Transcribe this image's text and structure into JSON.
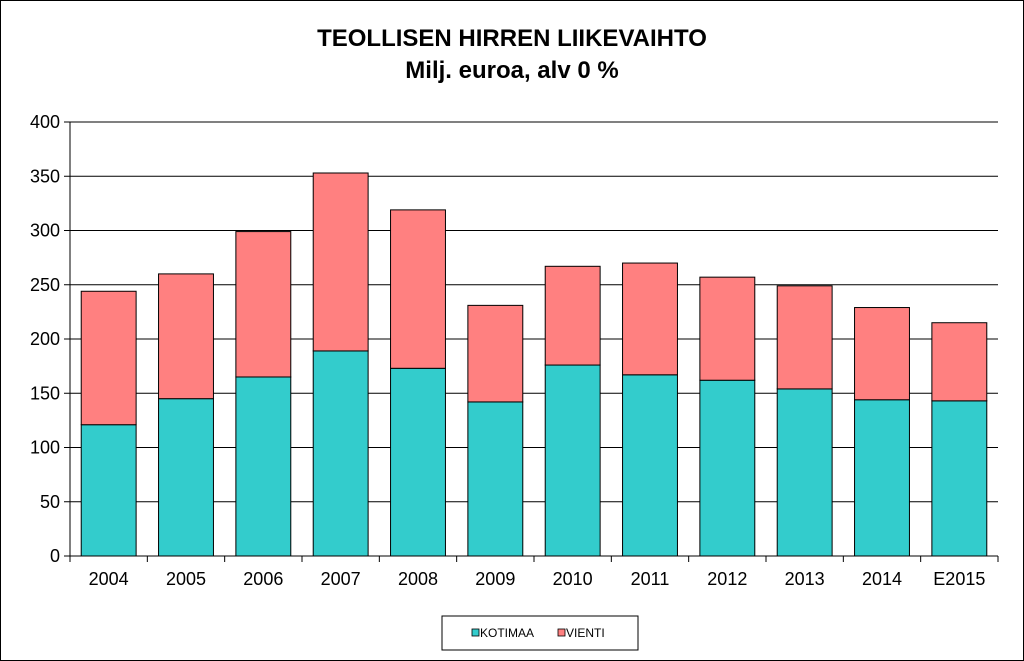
{
  "chart_data": {
    "type": "bar",
    "stacked": true,
    "title": "TEOLLISEN HIRREN LIIKEVAIHTO",
    "subtitle": "Milj. euroa, alv 0 %",
    "xlabel": "",
    "ylabel": "",
    "categories": [
      "2004",
      "2005",
      "2006",
      "2007",
      "2008",
      "2009",
      "2010",
      "2011",
      "2012",
      "2013",
      "2014",
      "E2015"
    ],
    "series": [
      {
        "name": "KOTIMAA",
        "color": "#33CCCC",
        "values": [
          121,
          145,
          165,
          189,
          173,
          142,
          176,
          167,
          162,
          154,
          144,
          143
        ]
      },
      {
        "name": "VIENTI",
        "color": "#FF8080",
        "values": [
          123,
          115,
          134,
          164,
          146,
          89,
          91,
          103,
          95,
          95,
          85,
          72
        ]
      }
    ],
    "ylim": [
      0,
      400
    ],
    "yticks": [
      0,
      50,
      100,
      150,
      200,
      250,
      300,
      350,
      400
    ],
    "grid": true,
    "legend_position": "bottom"
  }
}
